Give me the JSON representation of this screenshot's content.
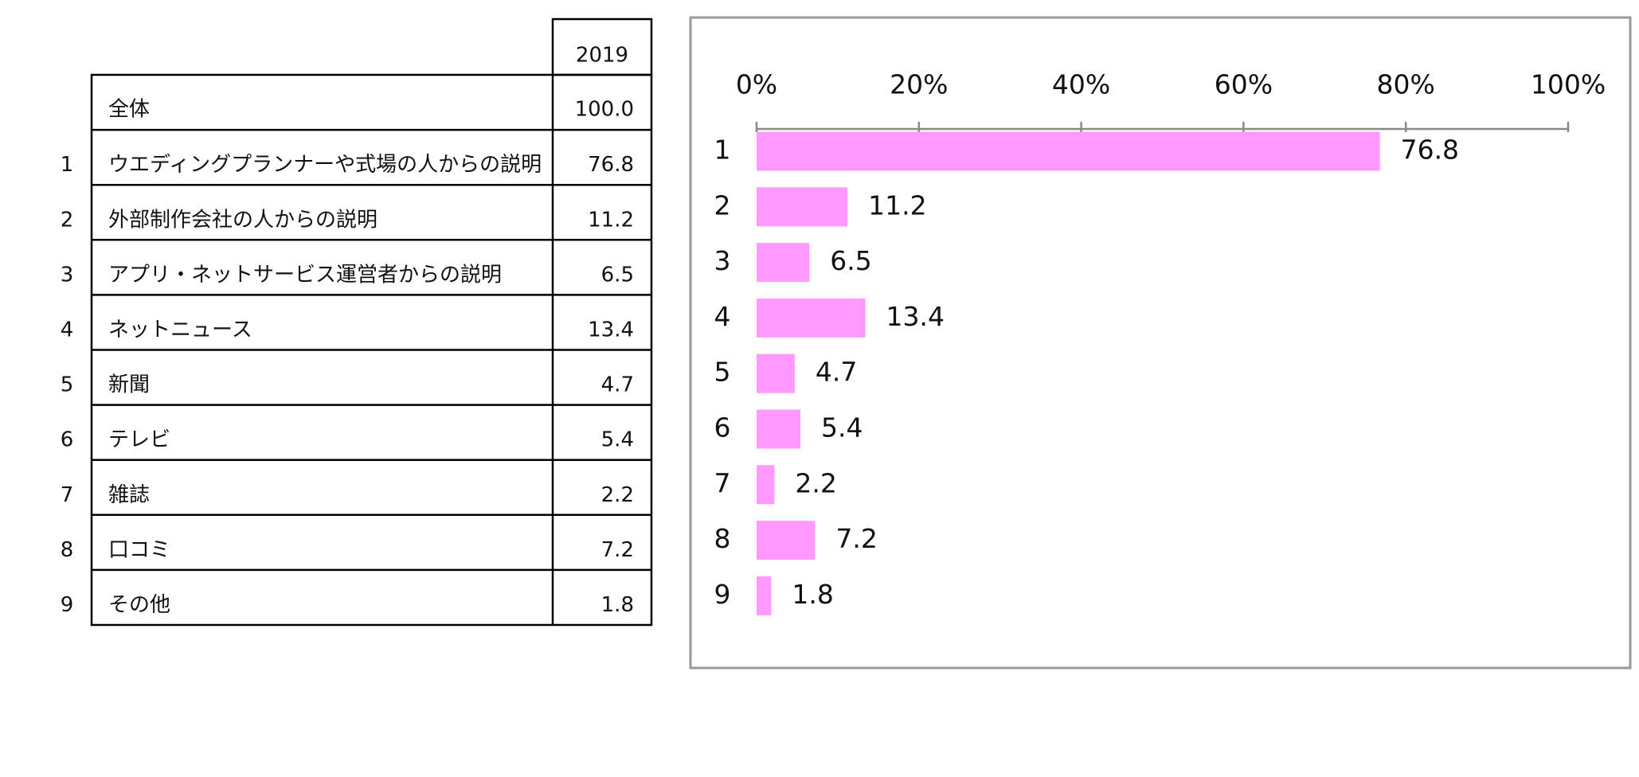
{
  "table": {
    "header": "2019",
    "total": {
      "label": "全体",
      "value": "100.0"
    },
    "rows": [
      {
        "no": "1",
        "label": "ウエディングプランナーや式場の人からの説明",
        "value": "76.8"
      },
      {
        "no": "2",
        "label": "外部制作会社の人からの説明",
        "value": "11.2"
      },
      {
        "no": "3",
        "label": "アプリ・ネットサービス運営者からの説明",
        "value": "6.5"
      },
      {
        "no": "4",
        "label": "ネットニュース",
        "value": "13.4"
      },
      {
        "no": "5",
        "label": "新聞",
        "value": "4.7"
      },
      {
        "no": "6",
        "label": "テレビ",
        "value": "5.4"
      },
      {
        "no": "7",
        "label": "雑誌",
        "value": "2.2"
      },
      {
        "no": "8",
        "label": "口コミ",
        "value": "7.2"
      },
      {
        "no": "9",
        "label": "その他",
        "value": "1.8"
      }
    ]
  },
  "chart_data": {
    "type": "bar",
    "orientation": "horizontal",
    "categories": [
      "1",
      "2",
      "3",
      "4",
      "5",
      "6",
      "7",
      "8",
      "9"
    ],
    "values": [
      76.8,
      11.2,
      6.5,
      13.4,
      4.7,
      5.4,
      2.2,
      7.2,
      1.8
    ],
    "color": "#ff99ff",
    "xlim": [
      0,
      100
    ],
    "xticks": [
      {
        "value": 0,
        "label": "0%"
      },
      {
        "value": 20,
        "label": "20%"
      },
      {
        "value": 40,
        "label": "40%"
      },
      {
        "value": 60,
        "label": "60%"
      },
      {
        "value": 80,
        "label": "80%"
      },
      {
        "value": 100,
        "label": "100%"
      }
    ],
    "grid": false
  }
}
